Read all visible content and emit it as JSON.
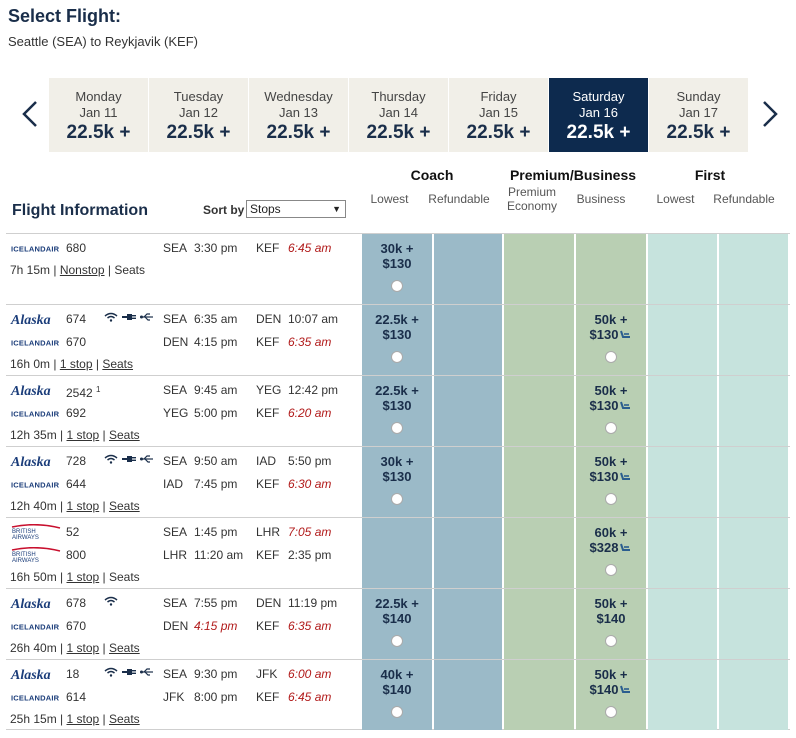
{
  "header": {
    "title": "Select Flight:",
    "route": "Seattle (SEA) to Reykjavik (KEF)"
  },
  "calendar": {
    "days": [
      {
        "name": "Monday",
        "date": "Jan 11",
        "price": "22.5k +"
      },
      {
        "name": "Tuesday",
        "date": "Jan 12",
        "price": "22.5k +"
      },
      {
        "name": "Wednesday",
        "date": "Jan 13",
        "price": "22.5k +"
      },
      {
        "name": "Thursday",
        "date": "Jan 14",
        "price": "22.5k +"
      },
      {
        "name": "Friday",
        "date": "Jan 15",
        "price": "22.5k +"
      },
      {
        "name": "Saturday",
        "date": "Jan 16",
        "price": "22.5k +"
      },
      {
        "name": "Sunday",
        "date": "Jan 17",
        "price": "22.5k +"
      }
    ],
    "selected_index": 5
  },
  "columns": {
    "coach": "Coach",
    "premium": "Premium/Business",
    "first": "First",
    "coach_lowest": "Lowest",
    "coach_refundable": "Refundable",
    "premium_economy": "Premium Economy",
    "business": "Business",
    "first_lowest": "Lowest",
    "first_refundable": "Refundable"
  },
  "flight_info": {
    "label": "Flight Information",
    "sort_label": "Sort by",
    "sort_value": "Stops"
  },
  "colors": {
    "navy": "#0d2a4e",
    "coach": "#9bbac8",
    "premium": "#b9cfb3",
    "first": "#c6e3dd",
    "late": "#b11a1a"
  },
  "flights": [
    {
      "segments": [
        {
          "airline": "icelandair",
          "flight": "680",
          "origin": "SEA",
          "dep": "3:30 pm",
          "dest": "KEF",
          "arr": "6:45 am",
          "arr_red": true
        }
      ],
      "duration": "7h 15m",
      "stops": "Nonstop",
      "seats": "Seats",
      "seats_link": false,
      "fares": {
        "coach_lowest": {
          "price": "30k +",
          "tax": "$130"
        }
      }
    },
    {
      "segments": [
        {
          "airline": "alaska",
          "flight": "674",
          "amenities": true,
          "origin": "SEA",
          "dep": "6:35 am",
          "dest": "DEN",
          "arr": "10:07 am",
          "arr_red": false
        },
        {
          "airline": "icelandair",
          "flight": "670",
          "origin": "DEN",
          "dep": "4:15 pm",
          "dest": "KEF",
          "arr": "6:35 am",
          "arr_red": true
        }
      ],
      "duration": "16h 0m",
      "stops": "1 stop",
      "seats": "Seats",
      "seats_link": true,
      "fares": {
        "coach_lowest": {
          "price": "22.5k +",
          "tax": "$130"
        },
        "business": {
          "price": "50k +",
          "tax": "$130",
          "seat": true
        }
      }
    },
    {
      "segments": [
        {
          "airline": "alaska",
          "flight": "2542",
          "note": "1",
          "origin": "SEA",
          "dep": "9:45 am",
          "dest": "YEG",
          "arr": "12:42 pm",
          "arr_red": false
        },
        {
          "airline": "icelandair",
          "flight": "692",
          "origin": "YEG",
          "dep": "5:00 pm",
          "dest": "KEF",
          "arr": "6:20 am",
          "arr_red": true
        }
      ],
      "duration": "12h 35m",
      "stops": "1 stop",
      "seats": "Seats",
      "seats_link": true,
      "fares": {
        "coach_lowest": {
          "price": "22.5k +",
          "tax": "$130"
        },
        "business": {
          "price": "50k +",
          "tax": "$130",
          "seat": true
        }
      }
    },
    {
      "segments": [
        {
          "airline": "alaska",
          "flight": "728",
          "amenities": true,
          "origin": "SEA",
          "dep": "9:50 am",
          "dest": "IAD",
          "arr": "5:50 pm",
          "arr_red": false
        },
        {
          "airline": "icelandair",
          "flight": "644",
          "origin": "IAD",
          "dep": "7:45 pm",
          "dest": "KEF",
          "arr": "6:30 am",
          "arr_red": true
        }
      ],
      "duration": "12h 40m",
      "stops": "1 stop",
      "seats": "Seats",
      "seats_link": true,
      "fares": {
        "coach_lowest": {
          "price": "30k +",
          "tax": "$130"
        },
        "business": {
          "price": "50k +",
          "tax": "$130",
          "seat": true
        }
      }
    },
    {
      "segments": [
        {
          "airline": "british",
          "flight": "52",
          "origin": "SEA",
          "dep": "1:45 pm",
          "dest": "LHR",
          "arr": "7:05 am",
          "arr_red": true
        },
        {
          "airline": "british",
          "flight": "800",
          "origin": "LHR",
          "dep": "11:20 am",
          "dest": "KEF",
          "arr": "2:35 pm",
          "arr_red": false
        }
      ],
      "duration": "16h 50m",
      "stops": "1 stop",
      "seats": "Seats",
      "seats_link": false,
      "fares": {
        "business": {
          "price": "60k +",
          "tax": "$328",
          "seat": true
        }
      }
    },
    {
      "segments": [
        {
          "airline": "alaska",
          "flight": "678",
          "wifi": true,
          "origin": "SEA",
          "dep": "7:55 pm",
          "dest": "DEN",
          "arr": "11:19 pm",
          "arr_red": false
        },
        {
          "airline": "icelandair",
          "flight": "670",
          "origin": "DEN",
          "dep": "4:15 pm",
          "dep_red": true,
          "dest": "KEF",
          "arr": "6:35 am",
          "arr_red": true
        }
      ],
      "duration": "26h 40m",
      "stops": "1 stop",
      "seats": "Seats",
      "seats_link": true,
      "fares": {
        "coach_lowest": {
          "price": "22.5k +",
          "tax": "$140"
        },
        "business": {
          "price": "50k +",
          "tax": "$140",
          "seat": false
        }
      }
    },
    {
      "segments": [
        {
          "airline": "alaska",
          "flight": "18",
          "amenities": true,
          "origin": "SEA",
          "dep": "9:30 pm",
          "dest": "JFK",
          "arr": "6:00 am",
          "arr_red": true
        },
        {
          "airline": "icelandair",
          "flight": "614",
          "origin": "JFK",
          "dep": "8:00 pm",
          "dest": "KEF",
          "arr": "6:45 am",
          "arr_red": true
        }
      ],
      "duration": "25h 15m",
      "stops": "1 stop",
      "seats": "Seats",
      "seats_link": true,
      "fares": {
        "coach_lowest": {
          "price": "40k +",
          "tax": "$140"
        },
        "business": {
          "price": "50k +",
          "tax": "$140",
          "seat": true
        }
      }
    }
  ],
  "airline_logos": {
    "icelandair": "ICELANDAIR",
    "alaska": "Alaska",
    "british": "BRITISH AIRWAYS"
  }
}
